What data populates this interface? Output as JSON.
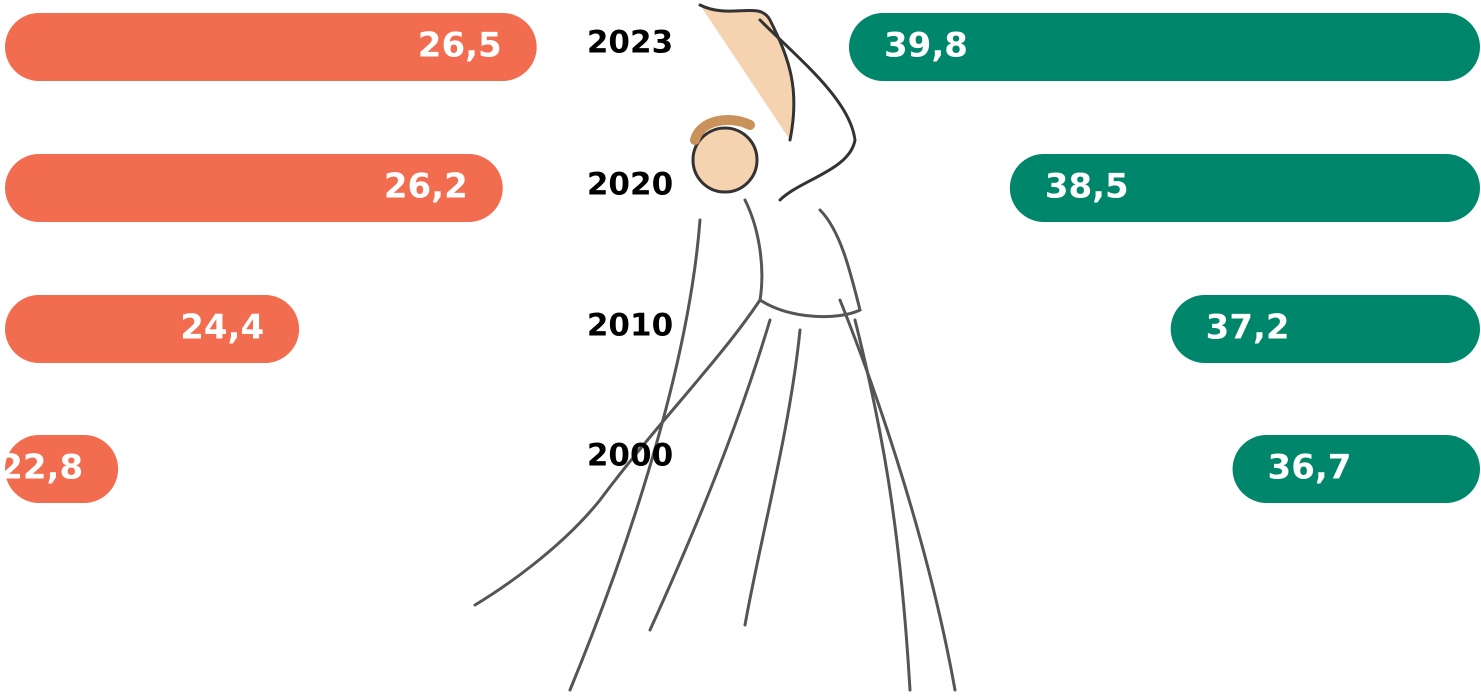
{
  "chart_data": {
    "type": "bar",
    "categories": [
      "2023",
      "2020",
      "2010",
      "2000"
    ],
    "series": [
      {
        "color": "#f26d50",
        "values": [
          26.5,
          26.2,
          24.4,
          22.8
        ],
        "value_labels": [
          "26,5",
          "26,2",
          "24,4",
          "22,8"
        ],
        "xlim": [
          21.8,
          26.6
        ]
      },
      {
        "color": "#00876b",
        "values": [
          39.8,
          38.5,
          37.2,
          36.7
        ],
        "value_labels": [
          "39,8",
          "38,5",
          "37,2",
          "36,7"
        ],
        "xlim": [
          34.7,
          39.8
        ]
      }
    ]
  }
}
